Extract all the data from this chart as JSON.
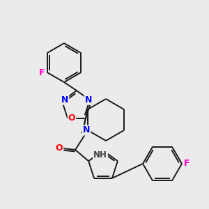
{
  "background_color": "#ebebeb",
  "bond_color": "#1a1a1a",
  "atom_colors": {
    "N": "#0000ff",
    "O": "#ff0000",
    "F": "#ff00cc",
    "H": "#404040",
    "C": "#1a1a1a"
  },
  "figsize": [
    3.0,
    3.0
  ],
  "dpi": 100
}
